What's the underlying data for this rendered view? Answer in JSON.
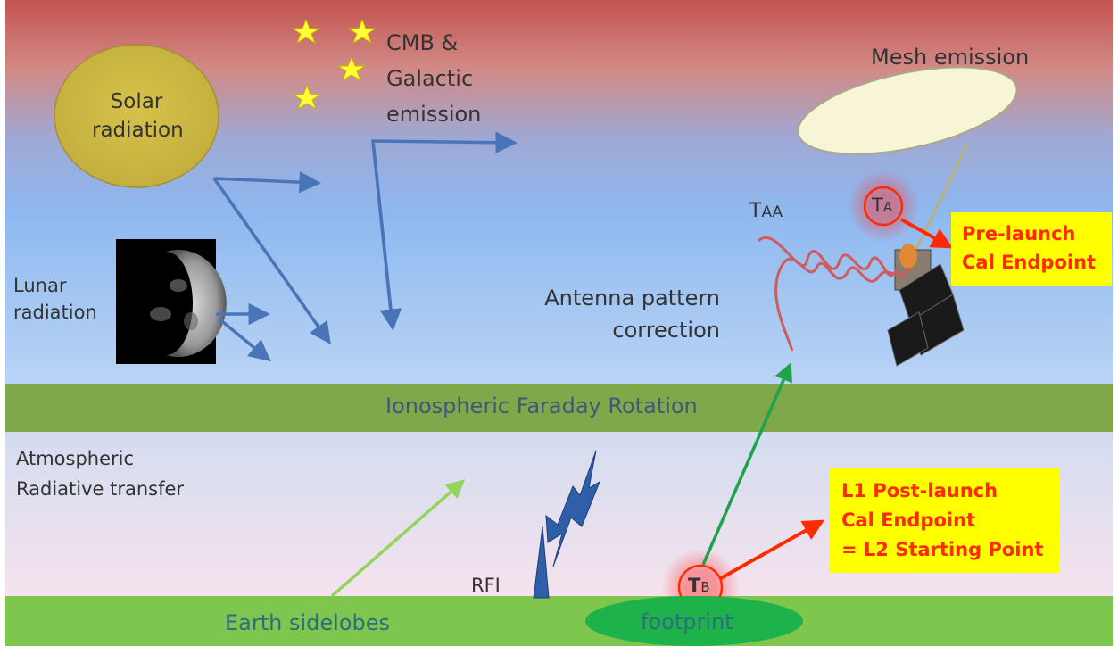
{
  "labels": {
    "solar": [
      "Solar",
      "radiation"
    ],
    "cmb": [
      "CMB &",
      "Galactic",
      "emission"
    ],
    "mesh": "Mesh emission",
    "lunar": [
      "Lunar",
      "radiation"
    ],
    "antenna": [
      "Antenna pattern",
      "correction"
    ],
    "taa": "T",
    "taa_sub": "AA",
    "ionosphere": "Ionospheric Faraday Rotation",
    "atmosphere": [
      "Atmospheric",
      "Radiative transfer"
    ],
    "rfi": "RFI",
    "earth_sidelobes": "Earth sidelobes",
    "footprint": "footprint",
    "ta": "T",
    "ta_sub": "A",
    "tb": "T",
    "tb_sub": "B"
  },
  "boxes": {
    "prelaunch": [
      "Pre-launch",
      "Cal Endpoint"
    ],
    "postlaunch": [
      "L1 Post-launch",
      "Cal Endpoint",
      "= L2 Starting Point"
    ]
  },
  "colors": {
    "sky_top": "#c25450",
    "sky_bottom": "#9fc3ef",
    "band_green": "#7fa84a",
    "ground_green": "#7fc64e",
    "arrow_blue": "#4a74b8",
    "arrow_red": "#ff2a00",
    "arrow_green": "#1fa34a",
    "callout_yellow": "#ffff00"
  }
}
